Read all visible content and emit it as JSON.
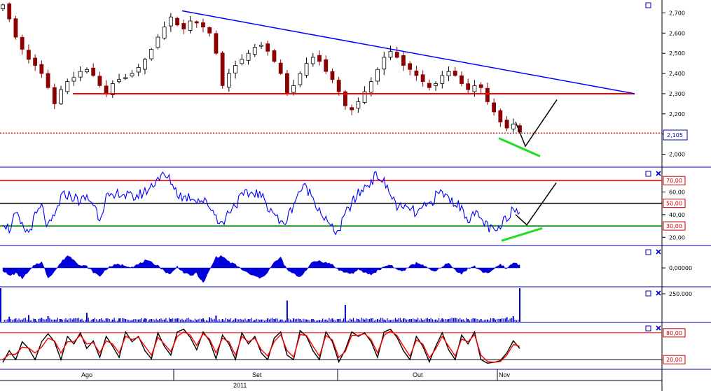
{
  "colors": {
    "background": "#ffffff",
    "candle_up": "#000000",
    "candle_down": "#8b0000",
    "trendline": "#0000ff",
    "support": "#ff0000",
    "dotted_last": "#cc0000",
    "rsi_line": "#0000ff",
    "rsi_70": "#ff0000",
    "rsi_50": "#000000",
    "rsi_30": "#008800",
    "oscillator": "#0000dd",
    "volume": "#0000cc",
    "stoch_k": "#000000",
    "stoch_d": "#ff0000",
    "divergence": "#22dd22",
    "projection": "#000000",
    "panel_border": "#0000aa"
  },
  "icons": {
    "maximize": "maximize-icon",
    "close": "close-icon"
  },
  "chart_data": [
    {
      "panel": "price",
      "type": "candlestick",
      "ylim": [
        1.95,
        2.75
      ],
      "yticks": [
        "2,700",
        "2,600",
        "2,500",
        "2,400",
        "2,300",
        "2,200",
        "2,100",
        "2,000"
      ],
      "last_price_label": "2,105",
      "close": [
        2.74,
        2.67,
        2.58,
        2.52,
        2.47,
        2.44,
        2.4,
        2.33,
        2.25,
        2.32,
        2.36,
        2.38,
        2.41,
        2.42,
        2.39,
        2.34,
        2.3,
        2.35,
        2.37,
        2.38,
        2.4,
        2.43,
        2.47,
        2.52,
        2.58,
        2.63,
        2.68,
        2.64,
        2.62,
        2.66,
        2.65,
        2.63,
        2.6,
        2.5,
        2.34,
        2.4,
        2.44,
        2.47,
        2.5,
        2.53,
        2.54,
        2.51,
        2.46,
        2.4,
        2.3,
        2.34,
        2.4,
        2.45,
        2.48,
        2.46,
        2.41,
        2.37,
        2.31,
        2.24,
        2.22,
        2.26,
        2.31,
        2.36,
        2.42,
        2.48,
        2.51,
        2.48,
        2.44,
        2.42,
        2.39,
        2.36,
        2.33,
        2.35,
        2.39,
        2.41,
        2.39,
        2.35,
        2.32,
        2.34,
        2.33,
        2.26,
        2.21,
        2.16,
        2.13,
        2.15,
        2.11
      ],
      "support_level": 2.3,
      "trendline": [
        [
          0,
          2.71
        ],
        [
          1,
          2.3
        ]
      ],
      "projection": {
        "from": 2.04,
        "to": 2.27
      },
      "divergence": {
        "from": 2.08,
        "to": 1.99
      }
    },
    {
      "panel": "rsi",
      "type": "line",
      "ylim": [
        14,
        80
      ],
      "levels": [
        70,
        50,
        30
      ],
      "level_labels": [
        "70,00",
        "50,00",
        "30,00"
      ],
      "tick_labels": [
        "60,00",
        "40,00",
        "20,00"
      ],
      "values": [
        35,
        27,
        40,
        29,
        24,
        38,
        47,
        28,
        38,
        55,
        58,
        55,
        52,
        55,
        50,
        37,
        56,
        53,
        60,
        57,
        55,
        57,
        60,
        65,
        73,
        74,
        70,
        59,
        55,
        56,
        54,
        52,
        48,
        39,
        31,
        44,
        49,
        56,
        58,
        60,
        56,
        48,
        42,
        31,
        36,
        50,
        62,
        64,
        55,
        45,
        35,
        27,
        25,
        40,
        50,
        58,
        64,
        70,
        75,
        68,
        58,
        48,
        44,
        46,
        40,
        45,
        49,
        56,
        60,
        54,
        51,
        45,
        37,
        40,
        36,
        30,
        24,
        28,
        38,
        46,
        42
      ]
    },
    {
      "panel": "oscillator",
      "type": "area",
      "ylim": [
        -1,
        1
      ],
      "tick_labels": [
        "0,00000"
      ],
      "values": [
        -0.12,
        -0.42,
        -0.28,
        -0.55,
        -0.22,
        0.18,
        0.32,
        -0.52,
        -0.18,
        0.28,
        0.66,
        0.45,
        0.12,
        0.08,
        -0.22,
        -0.45,
        -0.06,
        0.12,
        0.18,
        0.12,
        0.06,
        0.18,
        0.38,
        0.28,
        0.14,
        -0.18,
        -0.33,
        0.08,
        -0.24,
        -0.42,
        -0.28,
        -0.82,
        -0.12,
        0.58,
        0.62,
        0.32,
        0.16,
        -0.08,
        -0.3,
        -0.45,
        -0.55,
        -0.2,
        0.28,
        0.55,
        -0.12,
        -0.32,
        -0.48,
        -0.08,
        0.32,
        0.38,
        0.28,
        0.18,
        -0.12,
        -0.24,
        -0.3,
        -0.12,
        -0.24,
        -0.36,
        -0.14,
        0.06,
        0.18,
        -0.1,
        -0.16,
        0.08,
        0.26,
        0.18,
        -0.1,
        -0.2,
        0.1,
        0.24,
        -0.12,
        -0.3,
        -0.04,
        0.08,
        -0.18,
        -0.26,
        -0.08,
        0.18,
        -0.04,
        0.28,
        0.16
      ]
    },
    {
      "panel": "volume",
      "type": "bar",
      "ylim": [
        0,
        300000
      ],
      "tick_labels": [
        "250.000"
      ],
      "values": [
        310000,
        45000,
        30000,
        20000,
        60000,
        25000,
        35000,
        50000,
        20000,
        25000,
        15000,
        30000,
        20000,
        80000,
        25000,
        25000,
        30000,
        20000,
        30000,
        25000,
        15000,
        20000,
        30000,
        25000,
        15000,
        20000,
        25000,
        30000,
        15000,
        20000,
        15000,
        30000,
        40000,
        55000,
        25000,
        20000,
        30000,
        20000,
        25000,
        15000,
        20000,
        30000,
        25000,
        20000,
        190000,
        30000,
        25000,
        20000,
        25000,
        15000,
        20000,
        30000,
        25000,
        150000,
        20000,
        25000,
        20000,
        30000,
        25000,
        20000,
        15000,
        20000,
        30000,
        25000,
        20000,
        15000,
        25000,
        20000,
        30000,
        25000,
        35000,
        20000,
        25000,
        30000,
        25000,
        20000,
        30000,
        25000,
        40000,
        50000,
        300000
      ]
    },
    {
      "panel": "stochastic",
      "type": "line",
      "ylim": [
        0,
        100
      ],
      "levels": [
        80,
        20
      ],
      "level_labels": [
        "80,00",
        "20,00"
      ],
      "k_values": [
        14,
        40,
        20,
        60,
        45,
        20,
        60,
        78,
        60,
        20,
        72,
        55,
        80,
        45,
        62,
        25,
        72,
        50,
        25,
        82,
        60,
        72,
        40,
        22,
        80,
        50,
        30,
        82,
        88,
        70,
        42,
        82,
        62,
        22,
        75,
        55,
        20,
        80,
        55,
        72,
        35,
        20,
        68,
        82,
        30,
        20,
        85,
        72,
        40,
        20,
        82,
        60,
        15,
        42,
        82,
        72,
        80,
        60,
        25,
        82,
        88,
        70,
        40,
        20,
        72,
        50,
        15,
        50,
        80,
        42,
        20,
        75,
        55,
        82,
        20,
        12,
        14,
        18,
        35,
        62,
        45
      ],
      "d_values": [
        20,
        32,
        32,
        48,
        46,
        35,
        48,
        68,
        62,
        35,
        60,
        60,
        75,
        55,
        58,
        35,
        62,
        55,
        35,
        72,
        65,
        70,
        50,
        30,
        70,
        55,
        38,
        72,
        82,
        75,
        52,
        78,
        66,
        35,
        68,
        60,
        30,
        72,
        60,
        68,
        42,
        28,
        60,
        76,
        40,
        26,
        76,
        74,
        50,
        28,
        74,
        64,
        25,
        38,
        74,
        74,
        78,
        65,
        35,
        74,
        84,
        74,
        50,
        28,
        64,
        55,
        24,
        44,
        72,
        50,
        28,
        66,
        60,
        76,
        30,
        16,
        14,
        16,
        30,
        54,
        50
      ]
    }
  ],
  "time_axis": {
    "month_labels": [
      "Ago",
      "Set",
      "Out",
      "Nov"
    ],
    "year_label": "2011"
  }
}
